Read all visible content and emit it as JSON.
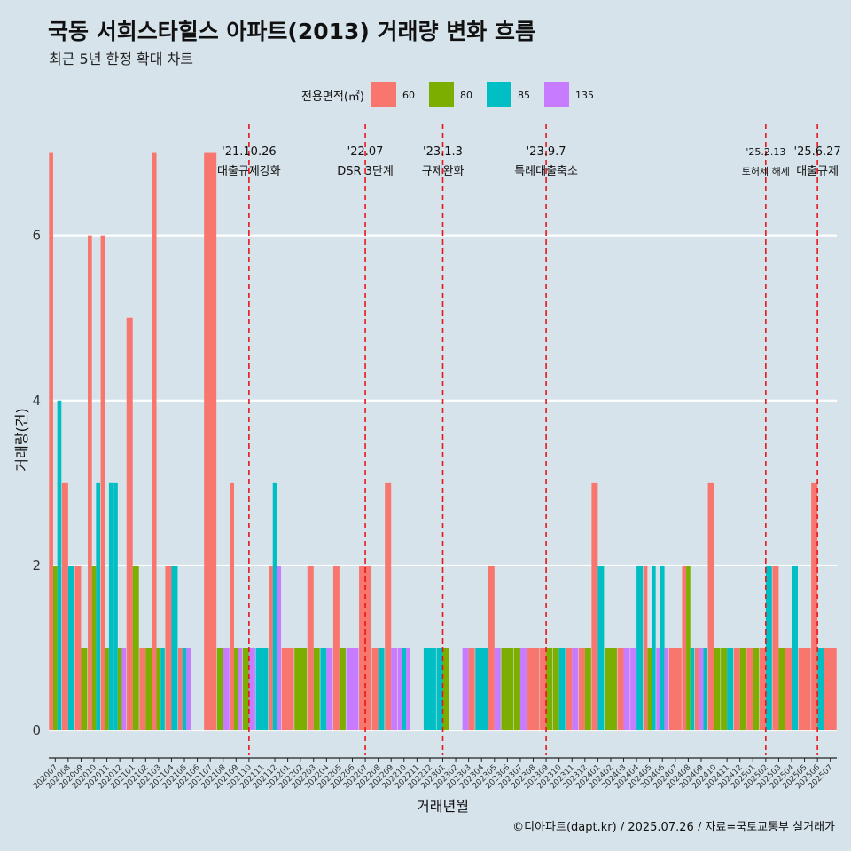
{
  "header": {
    "title": "국동 서희스타힐스 아파트(2013) 거래량 변화 흐름",
    "subtitle": "최근 5년 한정 확대 차트"
  },
  "legend": {
    "title": "전용면적(㎡)",
    "items": [
      {
        "label": "60",
        "color": "#f8766d"
      },
      {
        "label": "80",
        "color": "#7cae00"
      },
      {
        "label": "85",
        "color": "#00bfc4"
      },
      {
        "label": "135",
        "color": "#c77cff"
      }
    ]
  },
  "footer": {
    "credit": "©디아파트(dapt.kr) / 2025.07.26 / 자료=국토교통부 실거래가"
  },
  "chart_data": {
    "type": "bar",
    "title": "국동 서희스타힐스 아파트(2013) 거래량 변화 흐름",
    "xlabel": "거래년월",
    "ylabel": "거래량(건)",
    "ylim": [
      -0.3,
      7.35
    ],
    "yticks": [
      0,
      2,
      4,
      6
    ],
    "grid": true,
    "legend_position": "top",
    "categories": [
      "202007",
      "202008",
      "202009",
      "202010",
      "202011",
      "202012",
      "202101",
      "202102",
      "202103",
      "202104",
      "202105",
      "202106",
      "202107",
      "202108",
      "202109",
      "202110",
      "202111",
      "202112",
      "202201",
      "202202",
      "202203",
      "202204",
      "202205",
      "202206",
      "202207",
      "202208",
      "202209",
      "202210",
      "202211",
      "202212",
      "202301",
      "202302",
      "202303",
      "202304",
      "202305",
      "202306",
      "202307",
      "202308",
      "202309",
      "202310",
      "202311",
      "202312",
      "202401",
      "202402",
      "202403",
      "202404",
      "202405",
      "202406",
      "202407",
      "202408",
      "202409",
      "202410",
      "202411",
      "202412",
      "202501",
      "202502",
      "202503",
      "202504",
      "202505",
      "202506",
      "202507"
    ],
    "records": [
      {
        "month": "202007",
        "areas": [
          "60",
          "80",
          "85"
        ],
        "values": [
          7,
          2,
          4
        ]
      },
      {
        "month": "202008",
        "areas": [
          "60",
          "85"
        ],
        "values": [
          3,
          2
        ]
      },
      {
        "month": "202009",
        "areas": [
          "60",
          "80"
        ],
        "values": [
          2,
          1
        ]
      },
      {
        "month": "202010",
        "areas": [
          "60",
          "80",
          "85"
        ],
        "values": [
          6,
          2,
          3
        ]
      },
      {
        "month": "202011",
        "areas": [
          "60",
          "80",
          "85"
        ],
        "values": [
          6,
          1,
          3
        ]
      },
      {
        "month": "202012",
        "areas": [
          "85",
          "80",
          "135"
        ],
        "values": [
          3,
          1,
          1
        ]
      },
      {
        "month": "202101",
        "areas": [
          "60",
          "80"
        ],
        "values": [
          5,
          2
        ]
      },
      {
        "month": "202102",
        "areas": [
          "60",
          "80"
        ],
        "values": [
          1,
          1
        ]
      },
      {
        "month": "202103",
        "areas": [
          "60",
          "80",
          "85"
        ],
        "values": [
          7,
          1,
          1
        ]
      },
      {
        "month": "202104",
        "areas": [
          "60",
          "85"
        ],
        "values": [
          2,
          2
        ]
      },
      {
        "month": "202105",
        "areas": [
          "60",
          "85",
          "135"
        ],
        "values": [
          1,
          1,
          1
        ]
      },
      {
        "month": "202106",
        "areas": [],
        "values": []
      },
      {
        "month": "202107",
        "areas": [
          "60"
        ],
        "values": [
          7
        ]
      },
      {
        "month": "202108",
        "areas": [
          "80",
          "135"
        ],
        "values": [
          1,
          1
        ]
      },
      {
        "month": "202109",
        "areas": [
          "60",
          "80",
          "135"
        ],
        "values": [
          3,
          1,
          1
        ]
      },
      {
        "month": "202110",
        "areas": [
          "80",
          "135"
        ],
        "values": [
          1,
          1
        ]
      },
      {
        "month": "202111",
        "areas": [
          "85"
        ],
        "values": [
          1
        ]
      },
      {
        "month": "202112",
        "areas": [
          "60",
          "85",
          "135"
        ],
        "values": [
          2,
          3,
          2
        ]
      },
      {
        "month": "202201",
        "areas": [
          "60"
        ],
        "values": [
          1
        ]
      },
      {
        "month": "202202",
        "areas": [
          "80"
        ],
        "values": [
          1
        ]
      },
      {
        "month": "202203",
        "areas": [
          "60",
          "80"
        ],
        "values": [
          2,
          1
        ]
      },
      {
        "month": "202204",
        "areas": [
          "85",
          "135"
        ],
        "values": [
          1,
          1
        ]
      },
      {
        "month": "202205",
        "areas": [
          "60",
          "80"
        ],
        "values": [
          2,
          1
        ]
      },
      {
        "month": "202206",
        "areas": [
          "135"
        ],
        "values": [
          1
        ]
      },
      {
        "month": "202207",
        "areas": [
          "60"
        ],
        "values": [
          2
        ]
      },
      {
        "month": "202208",
        "areas": [
          "60",
          "85"
        ],
        "values": [
          1,
          1
        ]
      },
      {
        "month": "202209",
        "areas": [
          "60",
          "135"
        ],
        "values": [
          3,
          1
        ]
      },
      {
        "month": "202210",
        "areas": [
          "135",
          "85",
          "135"
        ],
        "values": [
          1,
          1,
          1
        ]
      },
      {
        "month": "202211",
        "areas": [],
        "values": []
      },
      {
        "month": "202212",
        "areas": [
          "85"
        ],
        "values": [
          1
        ]
      },
      {
        "month": "202301",
        "areas": [
          "85",
          "80"
        ],
        "values": [
          1,
          1
        ]
      },
      {
        "month": "202302",
        "areas": [],
        "values": []
      },
      {
        "month": "202303",
        "areas": [
          "135",
          "60"
        ],
        "values": [
          1,
          1
        ]
      },
      {
        "month": "202304",
        "areas": [
          "85"
        ],
        "values": [
          1
        ]
      },
      {
        "month": "202305",
        "areas": [
          "60",
          "135"
        ],
        "values": [
          2,
          1
        ]
      },
      {
        "month": "202306",
        "areas": [
          "80"
        ],
        "values": [
          1
        ]
      },
      {
        "month": "202307",
        "areas": [
          "80",
          "135"
        ],
        "values": [
          1,
          1
        ]
      },
      {
        "month": "202308",
        "areas": [
          "60"
        ],
        "values": [
          1
        ]
      },
      {
        "month": "202309",
        "areas": [
          "60",
          "80"
        ],
        "values": [
          1,
          1
        ]
      },
      {
        "month": "202310",
        "areas": [
          "80",
          "85"
        ],
        "values": [
          1,
          1
        ]
      },
      {
        "month": "202311",
        "areas": [
          "60",
          "135"
        ],
        "values": [
          1,
          1
        ]
      },
      {
        "month": "202312",
        "areas": [
          "60",
          "80"
        ],
        "values": [
          1,
          1
        ]
      },
      {
        "month": "202401",
        "areas": [
          "60",
          "85"
        ],
        "values": [
          3,
          2
        ]
      },
      {
        "month": "202402",
        "areas": [
          "80"
        ],
        "values": [
          1
        ]
      },
      {
        "month": "202403",
        "areas": [
          "60",
          "135"
        ],
        "values": [
          1,
          1
        ]
      },
      {
        "month": "202404",
        "areas": [
          "135",
          "85"
        ],
        "values": [
          1,
          2
        ]
      },
      {
        "month": "202405",
        "areas": [
          "60",
          "80",
          "85"
        ],
        "values": [
          2,
          1,
          2
        ]
      },
      {
        "month": "202406",
        "areas": [
          "135",
          "85",
          "135"
        ],
        "values": [
          1,
          2,
          1
        ]
      },
      {
        "month": "202407",
        "areas": [
          "60"
        ],
        "values": [
          1
        ]
      },
      {
        "month": "202408",
        "areas": [
          "60",
          "80",
          "85"
        ],
        "values": [
          2,
          2,
          1
        ]
      },
      {
        "month": "202409",
        "areas": [
          "60",
          "135",
          "85"
        ],
        "values": [
          1,
          1,
          1
        ]
      },
      {
        "month": "202410",
        "areas": [
          "60",
          "80"
        ],
        "values": [
          3,
          1
        ]
      },
      {
        "month": "202411",
        "areas": [
          "80",
          "85"
        ],
        "values": [
          1,
          1
        ]
      },
      {
        "month": "202412",
        "areas": [
          "60",
          "80"
        ],
        "values": [
          1,
          1
        ]
      },
      {
        "month": "202501",
        "areas": [
          "60",
          "80"
        ],
        "values": [
          1,
          1
        ]
      },
      {
        "month": "202502",
        "areas": [
          "60",
          "85"
        ],
        "values": [
          1,
          2
        ]
      },
      {
        "month": "202503",
        "areas": [
          "60",
          "80"
        ],
        "values": [
          2,
          1
        ]
      },
      {
        "month": "202504",
        "areas": [
          "60",
          "85"
        ],
        "values": [
          1,
          2
        ]
      },
      {
        "month": "202505",
        "areas": [
          "60"
        ],
        "values": [
          1
        ]
      },
      {
        "month": "202506",
        "areas": [
          "60",
          "85"
        ],
        "values": [
          3,
          1
        ]
      },
      {
        "month": "202507",
        "areas": [
          "60"
        ],
        "values": [
          1
        ]
      }
    ],
    "events": [
      {
        "month": "202110",
        "date": "'21.10.26",
        "label": "대출규제강화"
      },
      {
        "month": "202207",
        "date": "'22.07",
        "label": "DSR 3단계"
      },
      {
        "month": "202301",
        "date": "'23.1.3",
        "label": "규제완화"
      },
      {
        "month": "202309",
        "date": "'23.9.7",
        "label": "특례대출축소"
      },
      {
        "month": "202502",
        "date": "'25.2.13",
        "label": "토허제 해제"
      },
      {
        "month": "202506",
        "date": "'25.6.27",
        "label": "대출규제"
      }
    ]
  }
}
